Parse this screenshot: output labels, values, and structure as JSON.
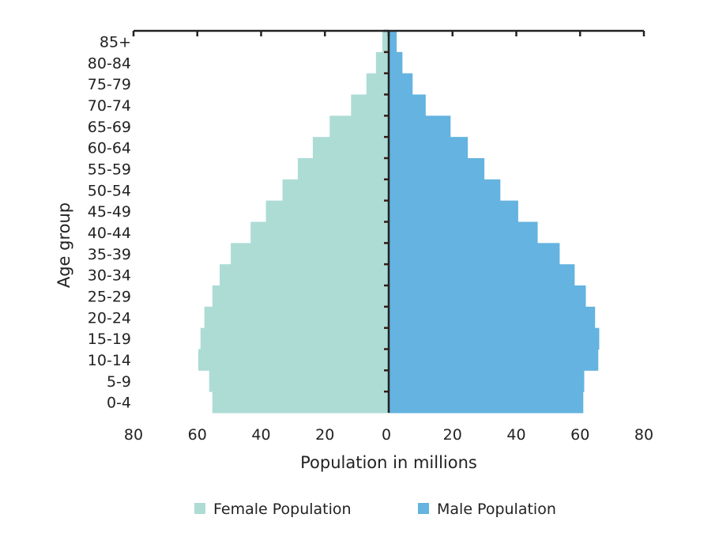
{
  "chart_data": {
    "type": "bar",
    "title": "",
    "xlabel": "Population in millions",
    "ylabel": "Age group",
    "xlim": [
      -80,
      80
    ],
    "x_ticks": [
      "80",
      "60",
      "40",
      "20",
      "0",
      "20",
      "40",
      "60",
      "80"
    ],
    "categories": [
      "0-4",
      "5-9",
      "10-14",
      "15-19",
      "20-24",
      "25-29",
      "30-34",
      "35-39",
      "40-44",
      "45-49",
      "50-54",
      "55-59",
      "60-64",
      "65-69",
      "70-74",
      "75-79",
      "80-84",
      "85+"
    ],
    "series": [
      {
        "name": "Female Population",
        "color": "#addcd5",
        "side": "left",
        "values": [
          55.3,
          56.3,
          59.7,
          59.0,
          57.8,
          55.3,
          53.0,
          49.5,
          43.3,
          38.5,
          33.3,
          28.5,
          23.8,
          18.5,
          11.8,
          7.0,
          4.0,
          2.0
        ]
      },
      {
        "name": "Male Population",
        "color": "#64b3e0",
        "side": "right",
        "values": [
          61.0,
          61.3,
          65.7,
          66.0,
          64.7,
          61.8,
          58.3,
          53.6,
          46.7,
          40.6,
          35.0,
          30.0,
          24.8,
          19.4,
          11.6,
          7.5,
          4.3,
          2.5
        ]
      }
    ],
    "legend_position": "bottom"
  }
}
